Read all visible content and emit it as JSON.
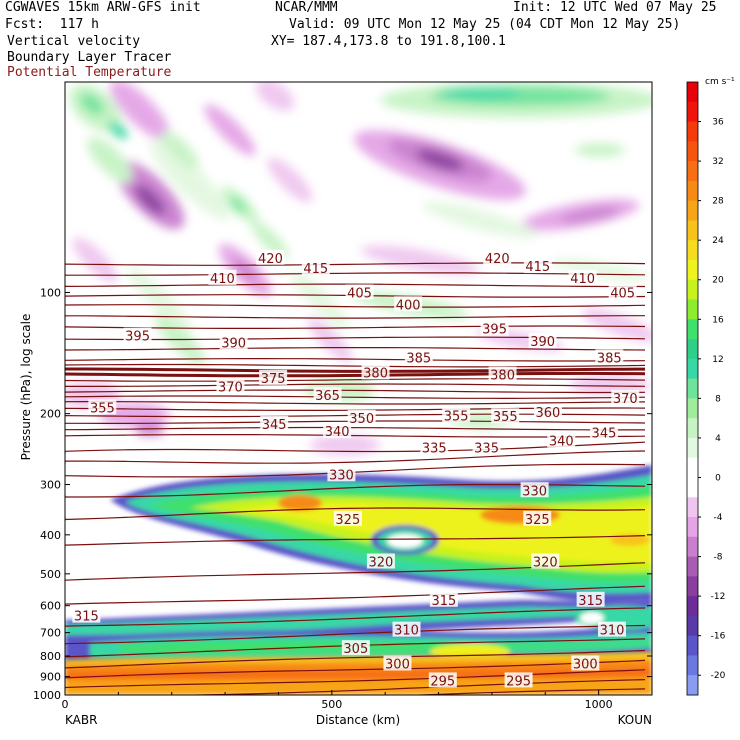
{
  "header": {
    "model": "CGWAVES 15km ARW-GFS init",
    "fcst": "Fcst:  117 h",
    "org": "NCAR/MMM",
    "init": "Init: 12 UTC Wed 07 May 25",
    "valid": "Valid: 09 UTC Mon 12 May 25 (04 CDT Mon 12 May 25)",
    "xy": "XY= 187.4,173.8 to 191.8,100.1",
    "field1": "Vertical velocity",
    "field2": "Boundary Layer Tracer",
    "field3": "Potential Temperature"
  },
  "colors": {
    "theta_line": "#7a1010",
    "field3_text": "#8b1a1a"
  },
  "chart_data": {
    "type": "heatmap",
    "xlabel": "Distance (km)",
    "ylabel": "Pressure (hPa), log scale",
    "xlim": [
      0,
      1100
    ],
    "ylim": [
      1000,
      30
    ],
    "x_ticks": [
      "0",
      "500",
      "1000"
    ],
    "x_tick_values": [
      0,
      500,
      1000
    ],
    "y_ticks": [
      "100",
      "200",
      "300",
      "400",
      "500",
      "600",
      "700",
      "800",
      "900",
      "1000"
    ],
    "y_tick_values": [
      100,
      200,
      300,
      400,
      500,
      600,
      700,
      800,
      900,
      1000
    ],
    "left_endpoint": "KABR",
    "right_endpoint": "KOUN",
    "colorbar": {
      "unit": "cm s⁻¹",
      "labels": [
        "36",
        "32",
        "28",
        "24",
        "20",
        "16",
        "12",
        "8",
        "4",
        "0",
        "-4",
        "-8",
        "-12",
        "-16",
        "-20"
      ],
      "label_values": [
        36,
        32,
        28,
        24,
        20,
        16,
        12,
        8,
        4,
        0,
        -4,
        -8,
        -12,
        -16,
        -20
      ],
      "bins": [
        {
          "from": 38,
          "to": 40,
          "color": "#e8000b"
        },
        {
          "from": 36,
          "to": 38,
          "color": "#f0140a"
        },
        {
          "from": 34,
          "to": 36,
          "color": "#f53a0c"
        },
        {
          "from": 32,
          "to": 34,
          "color": "#f7550f"
        },
        {
          "from": 30,
          "to": 32,
          "color": "#f76f12"
        },
        {
          "from": 28,
          "to": 30,
          "color": "#f78a14"
        },
        {
          "from": 26,
          "to": 28,
          "color": "#f7a417"
        },
        {
          "from": 24,
          "to": 26,
          "color": "#f7c31a"
        },
        {
          "from": 22,
          "to": 24,
          "color": "#f5dc1c"
        },
        {
          "from": 20,
          "to": 22,
          "color": "#eef21d"
        },
        {
          "from": 18,
          "to": 20,
          "color": "#c8f21d"
        },
        {
          "from": 16,
          "to": 18,
          "color": "#8eec2e"
        },
        {
          "from": 14,
          "to": 16,
          "color": "#3fe06c"
        },
        {
          "from": 12,
          "to": 14,
          "color": "#2fcf8a"
        },
        {
          "from": 10,
          "to": 12,
          "color": "#38d8a6"
        },
        {
          "from": 8,
          "to": 10,
          "color": "#6ee39b"
        },
        {
          "from": 6,
          "to": 8,
          "color": "#9fed9c"
        },
        {
          "from": 4,
          "to": 6,
          "color": "#c6f3c4"
        },
        {
          "from": 2,
          "to": 4,
          "color": "#e3f8e0"
        },
        {
          "from": -2,
          "to": 2,
          "color": "#ffffff"
        },
        {
          "from": -4,
          "to": -2,
          "color": "#efc6ef"
        },
        {
          "from": -6,
          "to": -4,
          "color": "#e4a4e6"
        },
        {
          "from": -8,
          "to": -6,
          "color": "#c97fce"
        },
        {
          "from": -10,
          "to": -8,
          "color": "#a85cb4"
        },
        {
          "from": -12,
          "to": -10,
          "color": "#8a3e9e"
        },
        {
          "from": -14,
          "to": -12,
          "color": "#6c2c9a"
        },
        {
          "from": -16,
          "to": -14,
          "color": "#5a3aa8"
        },
        {
          "from": -18,
          "to": -16,
          "color": "#5a55c8"
        },
        {
          "from": -20,
          "to": -18,
          "color": "#6a78e0"
        },
        {
          "from": -22,
          "to": -20,
          "color": "#8a9cf0"
        }
      ]
    },
    "theta_labels": [
      {
        "text": "420",
        "x": 385,
        "p": 82
      },
      {
        "text": "415",
        "x": 470,
        "p": 87
      },
      {
        "text": "410",
        "x": 295,
        "p": 92
      },
      {
        "text": "405",
        "x": 552,
        "p": 100
      },
      {
        "text": "400",
        "x": 643,
        "p": 107
      },
      {
        "text": "395",
        "x": 136,
        "p": 128
      },
      {
        "text": "390",
        "x": 316,
        "p": 133
      },
      {
        "text": "385",
        "x": 663,
        "p": 145
      },
      {
        "text": "380",
        "x": 582,
        "p": 158
      },
      {
        "text": "375",
        "x": 390,
        "p": 163
      },
      {
        "text": "370",
        "x": 310,
        "p": 171
      },
      {
        "text": "365",
        "x": 492,
        "p": 180
      },
      {
        "text": "355",
        "x": 70,
        "p": 193
      },
      {
        "text": "350",
        "x": 556,
        "p": 205
      },
      {
        "text": "345",
        "x": 392,
        "p": 212
      },
      {
        "text": "340",
        "x": 510,
        "p": 221
      },
      {
        "text": "335",
        "x": 692,
        "p": 243
      },
      {
        "text": "330",
        "x": 518,
        "p": 283
      },
      {
        "text": "325",
        "x": 530,
        "p": 365
      },
      {
        "text": "320",
        "x": 592,
        "p": 466
      },
      {
        "text": "315",
        "x": 710,
        "p": 580
      },
      {
        "text": "310",
        "x": 640,
        "p": 688
      },
      {
        "text": "305",
        "x": 545,
        "p": 765
      },
      {
        "text": "300",
        "x": 623,
        "p": 835
      },
      {
        "text": "295",
        "x": 708,
        "p": 920
      },
      {
        "text": "420",
        "x": 810,
        "p": 82
      },
      {
        "text": "415",
        "x": 886,
        "p": 86
      },
      {
        "text": "410",
        "x": 970,
        "p": 92
      },
      {
        "text": "405",
        "x": 1045,
        "p": 100
      },
      {
        "text": "395",
        "x": 805,
        "p": 123
      },
      {
        "text": "390",
        "x": 895,
        "p": 132
      },
      {
        "text": "385",
        "x": 1020,
        "p": 145
      },
      {
        "text": "380",
        "x": 820,
        "p": 160
      },
      {
        "text": "370",
        "x": 1050,
        "p": 183
      },
      {
        "text": "360",
        "x": 905,
        "p": 198
      },
      {
        "text": "355",
        "x": 733,
        "p": 202
      },
      {
        "text": "355",
        "x": 825,
        "p": 203
      },
      {
        "text": "345",
        "x": 1010,
        "p": 223
      },
      {
        "text": "340",
        "x": 930,
        "p": 233
      },
      {
        "text": "335",
        "x": 790,
        "p": 243
      },
      {
        "text": "330",
        "x": 880,
        "p": 310
      },
      {
        "text": "325",
        "x": 885,
        "p": 365
      },
      {
        "text": "320",
        "x": 900,
        "p": 466
      },
      {
        "text": "315",
        "x": 985,
        "p": 580
      },
      {
        "text": "310",
        "x": 1025,
        "p": 688
      },
      {
        "text": "300",
        "x": 975,
        "p": 835
      },
      {
        "text": "295",
        "x": 850,
        "p": 920
      },
      {
        "text": "315",
        "x": 40,
        "p": 635
      }
    ]
  }
}
